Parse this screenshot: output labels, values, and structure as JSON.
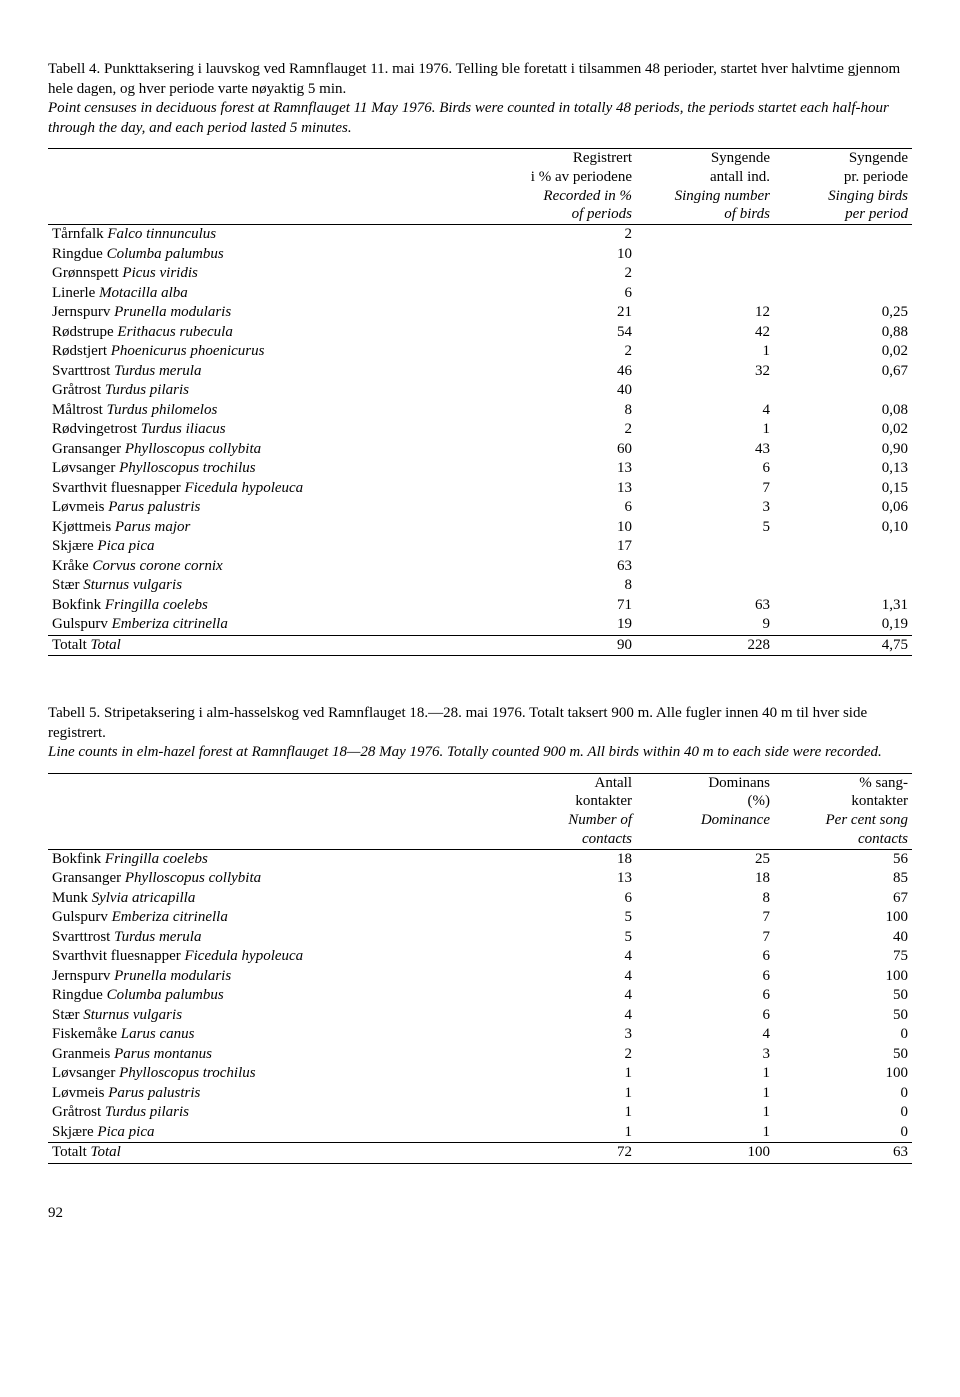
{
  "table4": {
    "caption_plain": "Tabell 4. Punkttaksering i lauvskog ved Ramnflauget 11. mai 1976. Telling ble foretatt i tilsammen 48 perioder, startet hver halvtime gjennom hele dagen, og hver periode varte nøyaktig 5 min.",
    "caption_italic": "Point censuses in deciduous forest at Ramnflauget 11 May 1976. Birds were counted in totally 48 periods, the periods startet each half-hour through the day, and each period lasted 5 minutes.",
    "headers": {
      "col1_line1": "Registrert",
      "col1_line2": "i % av periodene",
      "col1_line3_it": "Recorded in %",
      "col1_line4_it": "of periods",
      "col2_line1": "Syngende",
      "col2_line2": "antall ind.",
      "col2_line3_it": "Singing number",
      "col2_line4_it": "of birds",
      "col3_line1": "Syngende",
      "col3_line2": "pr. periode",
      "col3_line3_it": "Singing birds",
      "col3_line4_it": "per period"
    },
    "rows": [
      {
        "no": "Tårnfalk",
        "lat": "Falco tinnunculus",
        "c1": "2",
        "c2": "",
        "c3": ""
      },
      {
        "no": "Ringdue",
        "lat": "Columba palumbus",
        "c1": "10",
        "c2": "",
        "c3": ""
      },
      {
        "no": "Grønnspett",
        "lat": "Picus viridis",
        "c1": "2",
        "c2": "",
        "c3": ""
      },
      {
        "no": "Linerle",
        "lat": "Motacilla alba",
        "c1": "6",
        "c2": "",
        "c3": ""
      },
      {
        "no": "Jernspurv",
        "lat": "Prunella modularis",
        "c1": "21",
        "c2": "12",
        "c3": "0,25"
      },
      {
        "no": "Rødstrupe",
        "lat": "Erithacus rubecula",
        "c1": "54",
        "c2": "42",
        "c3": "0,88"
      },
      {
        "no": "Rødstjert",
        "lat": "Phoenicurus phoenicurus",
        "c1": "2",
        "c2": "1",
        "c3": "0,02"
      },
      {
        "no": "Svarttrost",
        "lat": "Turdus merula",
        "c1": "46",
        "c2": "32",
        "c3": "0,67"
      },
      {
        "no": "Gråtrost",
        "lat": "Turdus pilaris",
        "c1": "40",
        "c2": "",
        "c3": ""
      },
      {
        "no": "Måltrost",
        "lat": "Turdus philomelos",
        "c1": "8",
        "c2": "4",
        "c3": "0,08"
      },
      {
        "no": "Rødvingetrost",
        "lat": "Turdus iliacus",
        "c1": "2",
        "c2": "1",
        "c3": "0,02"
      },
      {
        "no": "Gransanger",
        "lat": "Phylloscopus collybita",
        "c1": "60",
        "c2": "43",
        "c3": "0,90"
      },
      {
        "no": "Løvsanger",
        "lat": "Phylloscopus trochilus",
        "c1": "13",
        "c2": "6",
        "c3": "0,13"
      },
      {
        "no": "Svarthvit fluesnapper",
        "lat": "Ficedula hypoleuca",
        "c1": "13",
        "c2": "7",
        "c3": "0,15"
      },
      {
        "no": "Løvmeis",
        "lat": "Parus palustris",
        "c1": "6",
        "c2": "3",
        "c3": "0,06"
      },
      {
        "no": "Kjøttmeis",
        "lat": "Parus major",
        "c1": "10",
        "c2": "5",
        "c3": "0,10"
      },
      {
        "no": "Skjære",
        "lat": "Pica pica",
        "c1": "17",
        "c2": "",
        "c3": ""
      },
      {
        "no": "Kråke",
        "lat": "Corvus corone cornix",
        "c1": "63",
        "c2": "",
        "c3": ""
      },
      {
        "no": "Stær",
        "lat": "Sturnus vulgaris",
        "c1": "8",
        "c2": "",
        "c3": ""
      },
      {
        "no": "Bokfink",
        "lat": "Fringilla coelebs",
        "c1": "71",
        "c2": "63",
        "c3": "1,31"
      },
      {
        "no": "Gulspurv",
        "lat": "Emberiza citrinella",
        "c1": "19",
        "c2": "9",
        "c3": "0,19"
      }
    ],
    "total": {
      "label_no": "Totalt",
      "label_it": "Total",
      "c1": "90",
      "c2": "228",
      "c3": "4,75"
    }
  },
  "table5": {
    "caption_plain": "Tabell 5. Stripetaksering i alm-hasselskog ved Ramnflauget 18.—28. mai 1976. Totalt taksert 900 m. Alle fugler innen 40 m til hver side registrert.",
    "caption_italic": "Line counts in elm-hazel forest at Ramnflauget 18—28 May 1976. Totally counted 900 m. All birds within 40 m to each side were recorded.",
    "headers": {
      "col1_line1": "Antall",
      "col1_line2": "kontakter",
      "col1_line3_it": "Number of",
      "col1_line4_it": "contacts",
      "col2_line1": "Dominans",
      "col2_line2": "(%)",
      "col2_line3_it": "Dominance",
      "col3_line1": "% sang-",
      "col3_line2": "kontakter",
      "col3_line3_it": "Per cent song",
      "col3_line4_it": "contacts"
    },
    "rows": [
      {
        "no": "Bokfink",
        "lat": "Fringilla coelebs",
        "c1": "18",
        "c2": "25",
        "c3": "56"
      },
      {
        "no": "Gransanger",
        "lat": "Phylloscopus collybita",
        "c1": "13",
        "c2": "18",
        "c3": "85"
      },
      {
        "no": "Munk",
        "lat": "Sylvia atricapilla",
        "c1": "6",
        "c2": "8",
        "c3": "67"
      },
      {
        "no": "Gulspurv",
        "lat": "Emberiza citrinella",
        "c1": "5",
        "c2": "7",
        "c3": "100"
      },
      {
        "no": "Svarttrost",
        "lat": "Turdus merula",
        "c1": "5",
        "c2": "7",
        "c3": "40"
      },
      {
        "no": "Svarthvit fluesnapper",
        "lat": "Ficedula hypoleuca",
        "c1": "4",
        "c2": "6",
        "c3": "75"
      },
      {
        "no": "Jernspurv",
        "lat": "Prunella modularis",
        "c1": "4",
        "c2": "6",
        "c3": "100"
      },
      {
        "no": "Ringdue",
        "lat": "Columba palumbus",
        "c1": "4",
        "c2": "6",
        "c3": "50"
      },
      {
        "no": "Stær",
        "lat": "Sturnus vulgaris",
        "c1": "4",
        "c2": "6",
        "c3": "50"
      },
      {
        "no": "Fiskemåke",
        "lat": "Larus canus",
        "c1": "3",
        "c2": "4",
        "c3": "0"
      },
      {
        "no": "Granmeis",
        "lat": "Parus montanus",
        "c1": "2",
        "c2": "3",
        "c3": "50"
      },
      {
        "no": "Løvsanger",
        "lat": "Phylloscopus trochilus",
        "c1": "1",
        "c2": "1",
        "c3": "100"
      },
      {
        "no": "Løvmeis",
        "lat": "Parus palustris",
        "c1": "1",
        "c2": "1",
        "c3": "0"
      },
      {
        "no": "Gråtrost",
        "lat": "Turdus pilaris",
        "c1": "1",
        "c2": "1",
        "c3": "0"
      },
      {
        "no": "Skjære",
        "lat": "Pica pica",
        "c1": "1",
        "c2": "1",
        "c3": "0"
      }
    ],
    "total": {
      "label_no": "Totalt",
      "label_it": "Total",
      "c1": "72",
      "c2": "100",
      "c3": "63"
    }
  },
  "page_number": "92"
}
